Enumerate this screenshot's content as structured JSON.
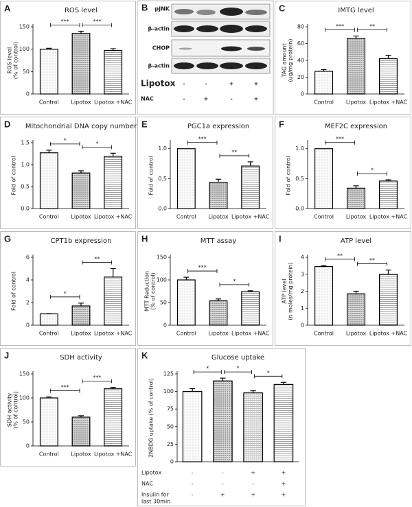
{
  "chart_data": [
    {
      "type": "bar",
      "panel": "A",
      "title": "ROS level",
      "ylabel": [
        "ROS level",
        "(% of control)"
      ],
      "categories": [
        "Control",
        "Lipotox",
        "Lipotox +NAC"
      ],
      "values": [
        100,
        135,
        97
      ],
      "errors": [
        2,
        5,
        4
      ],
      "ylim": [
        0,
        150
      ],
      "yticks": [
        0,
        50,
        100,
        150
      ],
      "significance": [
        "***",
        "***"
      ]
    },
    {
      "type": "bar",
      "panel": "C",
      "title": "IMTG level",
      "ylabel": [
        "TAG amount",
        "(ug/mg protein)"
      ],
      "categories": [
        "Control",
        "Lipotox",
        "Lipotox +NAC"
      ],
      "values": [
        27,
        66,
        42
      ],
      "errors": [
        2,
        3,
        4
      ],
      "ylim": [
        0,
        80
      ],
      "yticks": [
        0,
        20,
        40,
        60,
        80
      ],
      "significance": [
        "***",
        "**"
      ]
    },
    {
      "type": "bar",
      "panel": "D",
      "title": "Mitochondrial DNA copy number",
      "ylabel": [
        "Fold of control"
      ],
      "categories": [
        "Control",
        "Lipotox",
        "Lipotox +NAC"
      ],
      "values": [
        1.27,
        0.81,
        1.19
      ],
      "errors": [
        0.06,
        0.05,
        0.07
      ],
      "ylim": [
        0,
        1.5
      ],
      "yticks": [
        {
          "value": 0,
          "label": "0.0"
        },
        0.5,
        {
          "value": 1,
          "label": "1.0"
        },
        1.5
      ],
      "significance": [
        "*",
        "*"
      ]
    },
    {
      "type": "bar",
      "panel": "E",
      "title": "PGC1a expression",
      "ylabel": [
        "Fold of control"
      ],
      "categories": [
        "Control",
        "Lipotox",
        "Lipotox +NAC"
      ],
      "values": [
        1.0,
        0.44,
        0.71
      ],
      "errors": [
        0,
        0.05,
        0.07
      ],
      "ylim": [
        0,
        1.1
      ],
      "yticks": [
        {
          "value": 0,
          "label": "0.0"
        },
        0.5,
        {
          "value": 1,
          "label": "1.0"
        }
      ],
      "significance": [
        "***",
        "**"
      ]
    },
    {
      "type": "bar",
      "panel": "F",
      "title": "MEF2C expression",
      "ylabel": [
        "Fold of control"
      ],
      "categories": [
        "Control",
        "Lipotox",
        "Lipotox +NAC"
      ],
      "values": [
        1.0,
        0.34,
        0.46
      ],
      "errors": [
        0,
        0.04,
        0.02
      ],
      "ylim": [
        0,
        1.1
      ],
      "yticks": [
        {
          "value": 0,
          "label": "0.0"
        },
        0.5,
        {
          "value": 1,
          "label": "1.0"
        }
      ],
      "significance": [
        "***",
        "*"
      ]
    },
    {
      "type": "bar",
      "panel": "G",
      "title": "CPT1b expression",
      "ylabel": [
        "Fold of control"
      ],
      "categories": [
        "Control",
        "Lipotox",
        "Lipotox +NAC"
      ],
      "values": [
        1.0,
        1.7,
        4.25
      ],
      "errors": [
        0.02,
        0.25,
        0.75
      ],
      "ylim": [
        0,
        6
      ],
      "yticks": [
        0,
        2,
        4,
        6
      ],
      "significance": [
        "*",
        "**"
      ]
    },
    {
      "type": "bar",
      "panel": "H",
      "title": "MTT assay",
      "ylabel": [
        "MTT Reduction",
        "(% of control)"
      ],
      "categories": [
        "Control",
        "Lipotox",
        "Lipotox +NAC"
      ],
      "values": [
        100,
        54,
        74
      ],
      "errors": [
        6,
        4,
        2
      ],
      "ylim": [
        0,
        150
      ],
      "yticks": [
        0,
        50,
        100,
        150
      ],
      "significance": [
        "***",
        "*"
      ]
    },
    {
      "type": "bar",
      "panel": "I",
      "title": "ATP level",
      "ylabel": [
        "ATP level",
        "(n moles/mg protein)"
      ],
      "categories": [
        "Control",
        "Lipotox",
        "Lipotox +NAC"
      ],
      "values": [
        3.45,
        1.85,
        3.0
      ],
      "errors": [
        0.07,
        0.15,
        0.25
      ],
      "ylim": [
        0,
        4
      ],
      "yticks": [
        0,
        1,
        2,
        3,
        4
      ],
      "significance": [
        "**",
        "**"
      ]
    },
    {
      "type": "bar",
      "panel": "J",
      "title": "SDH activity",
      "ylabel": [
        "SDH activity",
        "(% of control)"
      ],
      "categories": [
        "Control",
        "Lipotox",
        "Lipotox +NAC"
      ],
      "values": [
        100,
        60,
        119
      ],
      "errors": [
        2,
        3,
        3
      ],
      "ylim": [
        0,
        150
      ],
      "yticks": [
        0,
        50,
        100,
        150
      ],
      "significance": [
        "***",
        "***"
      ]
    },
    {
      "type": "bar",
      "panel": "K",
      "title": "Glucose uptake",
      "ylabel": [
        "2NBDG uptake (% of control)"
      ],
      "categories": [
        null,
        null,
        null,
        null
      ],
      "values": [
        100,
        115,
        98,
        110
      ],
      "errors": [
        4,
        4,
        3,
        3
      ],
      "ylim": [
        0,
        125
      ],
      "yticks": [
        0,
        25,
        50,
        75,
        100,
        125
      ],
      "significance": [
        "*",
        "*",
        "*"
      ],
      "conditions": [
        {
          "name": [
            "Lipotox"
          ],
          "values": [
            "-",
            "-",
            "+",
            "+"
          ]
        },
        {
          "name": [
            "NAC"
          ],
          "values": [
            "-",
            "-",
            "-",
            "+"
          ]
        },
        {
          "name": [
            "Insulin for",
            "last 30min"
          ],
          "values": [
            "-",
            "+",
            "+",
            "+"
          ]
        }
      ]
    }
  ],
  "blot": {
    "panel": "B",
    "rows": [
      "pJNK",
      "β-actin",
      "CHOP",
      "β-actin"
    ],
    "treatments": [
      {
        "name": "Lipotox",
        "values": [
          "-",
          "-",
          "+",
          "+"
        ]
      },
      {
        "name": "NAC",
        "values": [
          "-",
          "+",
          "-",
          "+"
        ]
      }
    ]
  }
}
